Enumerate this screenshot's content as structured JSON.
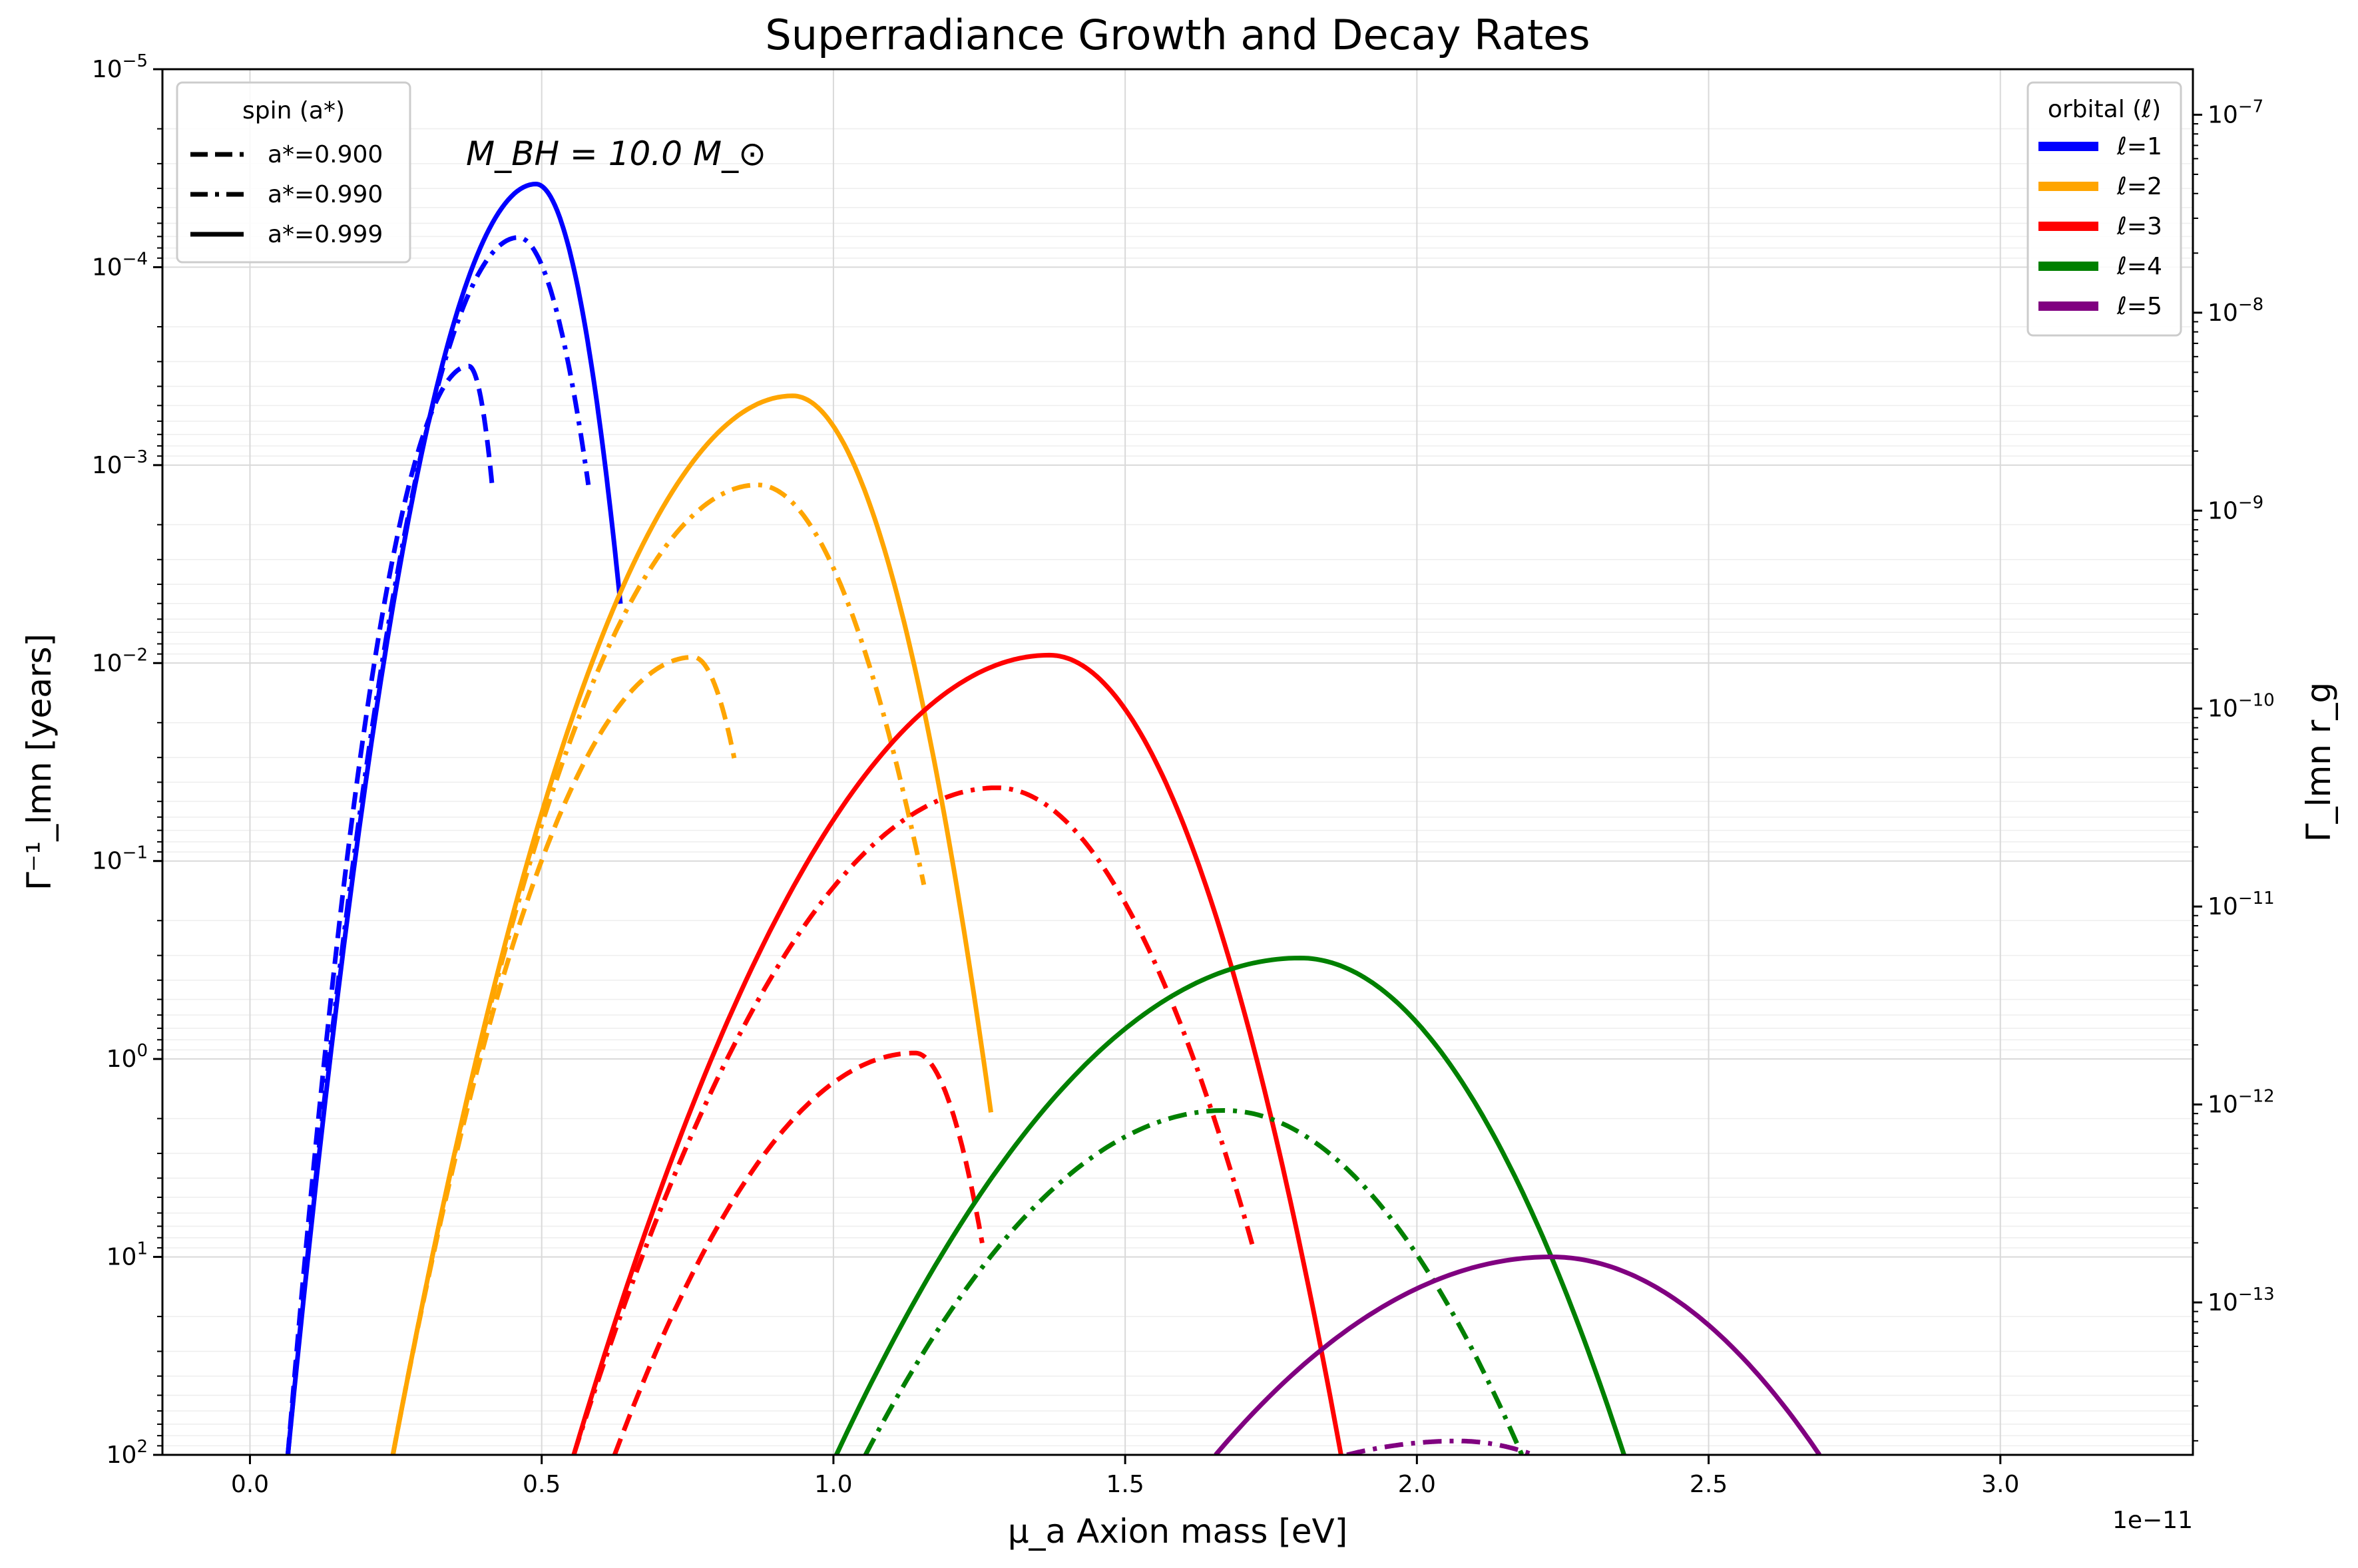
{
  "chart_data": {
    "type": "line",
    "title": "Superradiance Growth and Decay Rates",
    "xlabel": "μ_a Axion mass [eV]",
    "x_offset_label": "1e−11",
    "ylabel_left": "Γ⁻¹_lmn [years]",
    "ylabel_right": "Γ_lmn r_g",
    "annotation": "M_BH = 10.0 M_⊙",
    "xlim": [
      -0.15,
      3.33
    ],
    "x_unit_scale": "1e-11",
    "ylim_left_log10": [
      2,
      -5
    ],
    "left_axis_inverted_log": true,
    "ylim_right_log10": [
      -13.77,
      -6.77
    ],
    "right_axis_log": true,
    "grid": true,
    "x_ticks": [
      "0.0",
      "0.5",
      "1.0",
      "1.5",
      "2.0",
      "2.5",
      "3.0"
    ],
    "y_left_ticks": [
      {
        "base": "10",
        "exp": "2"
      },
      {
        "base": "10",
        "exp": "1"
      },
      {
        "base": "10",
        "exp": "0"
      },
      {
        "base": "10",
        "exp": "−1"
      },
      {
        "base": "10",
        "exp": "−2"
      },
      {
        "base": "10",
        "exp": "−3"
      },
      {
        "base": "10",
        "exp": "−4"
      },
      {
        "base": "10",
        "exp": "−5"
      }
    ],
    "y_right_ticks": [
      {
        "base": "10",
        "exp": "−13"
      },
      {
        "base": "10",
        "exp": "−12"
      },
      {
        "base": "10",
        "exp": "−11"
      },
      {
        "base": "10",
        "exp": "−10"
      },
      {
        "base": "10",
        "exp": "−9"
      },
      {
        "base": "10",
        "exp": "−8"
      },
      {
        "base": "10",
        "exp": "−7"
      }
    ],
    "legend_spin": {
      "title": "spin (a*)",
      "placement": "top-left",
      "entries": [
        {
          "label": "a*=0.900",
          "style": "dashed"
        },
        {
          "label": "a*=0.990",
          "style": "dashdot"
        },
        {
          "label": "a*=0.999",
          "style": "solid"
        }
      ]
    },
    "legend_orbital": {
      "title": "orbital (ℓ)",
      "placement": "top-right",
      "entries": [
        {
          "label": "ℓ=1",
          "color": "#0000ff"
        },
        {
          "label": "ℓ=2",
          "color": "#ffa500"
        },
        {
          "label": "ℓ=3",
          "color": "#ff0000"
        },
        {
          "label": "ℓ=4",
          "color": "#008000"
        },
        {
          "label": "ℓ=5",
          "color": "#800080"
        }
      ]
    },
    "series": [
      {
        "l": 1,
        "spin": "a*=0.900",
        "color": "#0000ff",
        "style": "dashed",
        "x_start": 0.065,
        "x_peak": 0.375,
        "peak_log10_years": -3.5,
        "x_end": 0.415,
        "end_log10_years": -2.9
      },
      {
        "l": 1,
        "spin": "a*=0.990",
        "color": "#0000ff",
        "style": "dashdot",
        "x_start": 0.065,
        "x_peak": 0.46,
        "peak_log10_years": -4.15,
        "x_end": 0.58,
        "end_log10_years": -2.9
      },
      {
        "l": 1,
        "spin": "a*=0.999",
        "color": "#0000ff",
        "style": "solid",
        "x_start": 0.065,
        "x_peak": 0.49,
        "peak_log10_years": -4.42,
        "x_end": 0.635,
        "end_log10_years": -2.3
      },
      {
        "l": 2,
        "spin": "a*=0.900",
        "color": "#ffa500",
        "style": "dashed",
        "x_start": 0.245,
        "x_peak": 0.76,
        "peak_log10_years": -2.03,
        "x_end": 0.83,
        "end_log10_years": -1.52
      },
      {
        "l": 2,
        "spin": "a*=0.990",
        "color": "#ffa500",
        "style": "dashdot",
        "x_start": 0.245,
        "x_peak": 0.87,
        "peak_log10_years": -2.9,
        "x_end": 1.155,
        "end_log10_years": -0.88
      },
      {
        "l": 2,
        "spin": "a*=0.999",
        "color": "#ffa500",
        "style": "solid",
        "x_start": 0.245,
        "x_peak": 0.93,
        "peak_log10_years": -3.35,
        "x_end": 1.27,
        "end_log10_years": 0.27
      },
      {
        "l": 3,
        "spin": "a*=0.900",
        "color": "#ff0000",
        "style": "dashed",
        "x_start": 0.625,
        "x_peak": 1.14,
        "peak_log10_years": -0.03,
        "x_end": 1.255,
        "end_log10_years": 0.93
      },
      {
        "l": 3,
        "spin": "a*=0.990",
        "color": "#ff0000",
        "style": "dashdot",
        "x_start": 0.555,
        "x_peak": 1.28,
        "peak_log10_years": -1.37,
        "x_end": 1.72,
        "end_log10_years": 0.96
      },
      {
        "l": 3,
        "spin": "a*=0.999",
        "color": "#ff0000",
        "style": "solid",
        "x_start": 0.555,
        "x_peak": 1.37,
        "peak_log10_years": -2.04,
        "x_end": 1.87,
        "end_log10_years": 2.0
      },
      {
        "l": 4,
        "spin": "a*=0.990",
        "color": "#008000",
        "style": "dashdot",
        "x_start": 1.055,
        "x_peak": 1.67,
        "peak_log10_years": 0.26,
        "x_end": 2.18,
        "end_log10_years": 2.0
      },
      {
        "l": 4,
        "spin": "a*=0.999",
        "color": "#008000",
        "style": "solid",
        "x_start": 1.005,
        "x_peak": 1.8,
        "peak_log10_years": -0.51,
        "x_end": 2.355,
        "end_log10_years": 2.0
      },
      {
        "l": 5,
        "spin": "a*=0.990",
        "color": "#800080",
        "style": "dashdot",
        "x_start": 1.88,
        "x_peak": 2.07,
        "peak_log10_years": 1.93,
        "x_end": 2.2,
        "end_log10_years": 2.0
      },
      {
        "l": 5,
        "spin": "a*=0.999",
        "color": "#800080",
        "style": "solid",
        "x_start": 1.655,
        "x_peak": 2.23,
        "peak_log10_years": 1.0,
        "x_end": 2.69,
        "end_log10_years": 2.0
      }
    ]
  }
}
